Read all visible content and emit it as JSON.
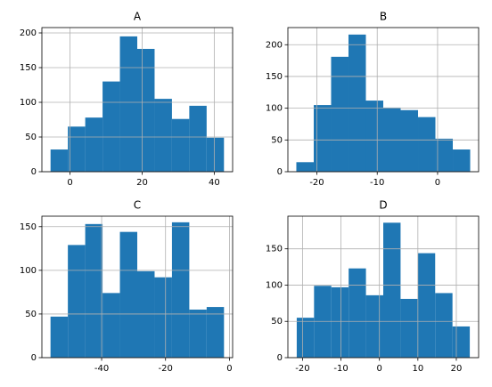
{
  "chart_data": [
    {
      "type": "histogram",
      "title": "A",
      "color": "#1f77b4",
      "grid": true,
      "bins": [
        -5.4,
        -0.59,
        4.22,
        9.03,
        13.84,
        18.65,
        23.46,
        28.27,
        33.08,
        37.89,
        42.7
      ],
      "values": [
        32,
        65,
        78,
        130,
        195,
        177,
        105,
        76,
        95,
        49
      ],
      "xlim": [
        -7.8,
        45.1
      ],
      "xticks": [
        0,
        20,
        40
      ],
      "ylim": [
        0,
        207.7
      ],
      "yticks": [
        0,
        50,
        100,
        150,
        200
      ]
    },
    {
      "type": "histogram",
      "title": "B",
      "color": "#1f77b4",
      "grid": true,
      "bins": [
        -23.4,
        -20.52,
        -17.64,
        -14.76,
        -11.88,
        -9.0,
        -6.12,
        -3.24,
        -0.36,
        2.52,
        5.4
      ],
      "values": [
        15,
        105,
        181,
        216,
        112,
        101,
        97,
        86,
        52,
        35
      ],
      "xlim": [
        -24.8,
        6.8
      ],
      "xticks": [
        -20,
        -10,
        0
      ],
      "ylim": [
        0,
        227
      ],
      "yticks": [
        0,
        50,
        100,
        150,
        200
      ]
    },
    {
      "type": "histogram",
      "title": "C",
      "color": "#1f77b4",
      "grid": true,
      "bins": [
        -56.0,
        -50.57,
        -45.14,
        -39.71,
        -34.28,
        -28.85,
        -23.42,
        -17.99,
        -12.56,
        -7.13,
        -1.7
      ],
      "values": [
        47,
        129,
        153,
        74,
        144,
        99,
        92,
        155,
        55,
        58
      ],
      "xlim": [
        -58.7,
        1.0
      ],
      "xticks": [
        -40,
        -20,
        0
      ],
      "ylim": [
        0,
        162
      ],
      "yticks": [
        0,
        50,
        100,
        150
      ]
    },
    {
      "type": "histogram",
      "title": "D",
      "color": "#1f77b4",
      "grid": true,
      "bins": [
        -21.5,
        -17,
        -12.5,
        -8,
        -3.5,
        1,
        5.5,
        10,
        14.5,
        19,
        23.5
      ],
      "values": [
        55,
        99,
        97,
        123,
        86,
        186,
        81,
        144,
        89,
        43
      ],
      "xlim": [
        -23.8,
        25.8
      ],
      "xticks": [
        -20,
        -10,
        0,
        10,
        20
      ],
      "ylim": [
        0,
        195
      ],
      "yticks": [
        0,
        50,
        100,
        150
      ]
    }
  ]
}
